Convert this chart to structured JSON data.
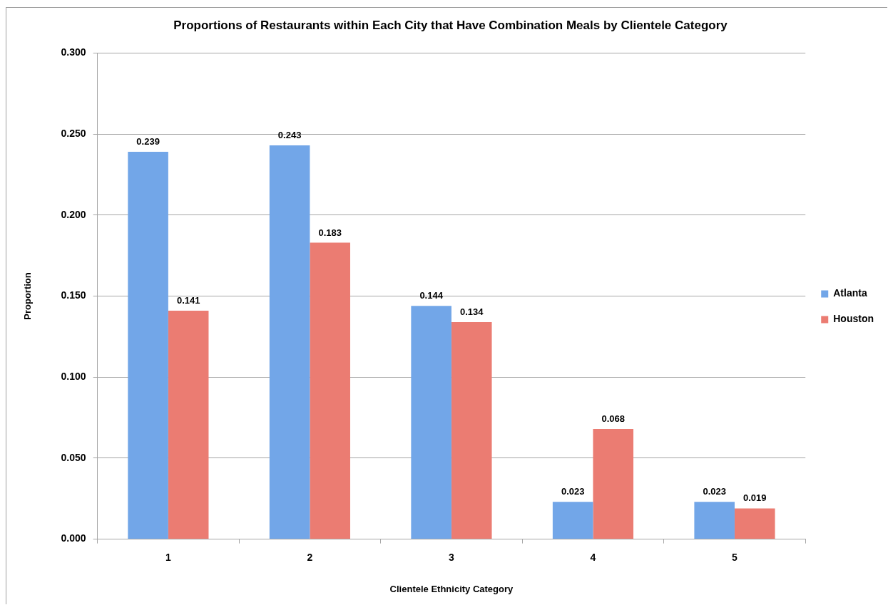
{
  "chart_data": {
    "type": "bar",
    "title": "Proportions of Restaurants within Each City that Have Combination Meals by Clientele Category",
    "xlabel": "Clientele Ethnicity Category",
    "ylabel": "Proportion",
    "categories": [
      "1",
      "2",
      "3",
      "4",
      "5"
    ],
    "series": [
      {
        "name": "Atlanta",
        "color": "#72a6e8",
        "values": [
          0.239,
          0.243,
          0.144,
          0.023,
          0.023
        ]
      },
      {
        "name": "Houston",
        "color": "#eb7c72",
        "values": [
          0.141,
          0.183,
          0.134,
          0.068,
          0.019
        ]
      }
    ],
    "ylim": [
      0,
      0.3
    ],
    "yticks": [
      {
        "value": 0,
        "label": "0.000"
      },
      {
        "value": 0.05,
        "label": "0.050"
      },
      {
        "value": 0.1,
        "label": "0.100"
      },
      {
        "value": 0.15,
        "label": "0.150"
      },
      {
        "value": 0.2,
        "label": "0.200"
      },
      {
        "value": 0.25,
        "label": "0.250"
      },
      {
        "value": 0.3,
        "label": "0.300"
      }
    ],
    "grid": "y",
    "legend": "right",
    "data_labels": true
  }
}
